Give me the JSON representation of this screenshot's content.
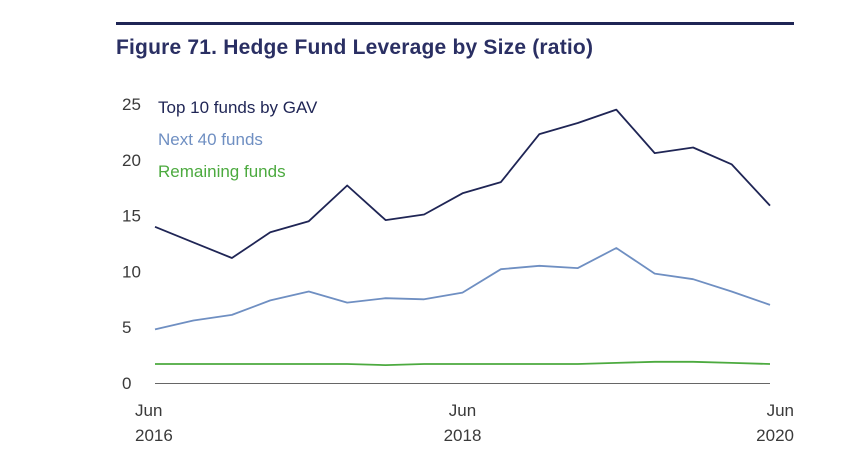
{
  "title": "Figure 71. Hedge Fund Leverage by Size (ratio)",
  "chart_data": {
    "type": "line",
    "title": "Figure 71. Hedge Fund Leverage by Size (ratio)",
    "xlabel": "",
    "ylabel": "",
    "ylim": [
      0,
      25
    ],
    "yticks": [
      "0",
      "5",
      "10",
      "15",
      "20",
      "25"
    ],
    "xticks": [
      {
        "label": [
          "Jun",
          "2016"
        ],
        "index": 0
      },
      {
        "label": [
          "Jun",
          "2018"
        ],
        "index": 8
      },
      {
        "label": [
          "Jun",
          "2020"
        ],
        "index": 16
      }
    ],
    "grid": false,
    "legend_position": "top-left",
    "x": [
      "Jun 2016",
      "Sep 2016",
      "Dec 2016",
      "Mar 2017",
      "Jun 2017",
      "Sep 2017",
      "Dec 2017",
      "Mar 2018",
      "Jun 2018",
      "Sep 2018",
      "Dec 2018",
      "Mar 2019",
      "Jun 2019",
      "Sep 2019",
      "Dec 2019",
      "Mar 2020",
      "Jun 2020"
    ],
    "series": [
      {
        "name": "Top 10 funds by GAV",
        "color": "#1f2555",
        "values": [
          14.0,
          12.6,
          11.2,
          13.5,
          14.5,
          17.7,
          14.6,
          15.1,
          17.0,
          18.0,
          22.3,
          23.3,
          24.5,
          20.6,
          21.1,
          19.6,
          15.9
        ]
      },
      {
        "name": "Next 40 funds",
        "color": "#6f8fc2",
        "values": [
          4.8,
          5.6,
          6.1,
          7.4,
          8.2,
          7.2,
          7.6,
          7.5,
          8.1,
          10.2,
          10.5,
          10.3,
          12.1,
          9.8,
          9.3,
          8.2,
          7.0
        ]
      },
      {
        "name": "Remaining funds",
        "color": "#4caa3f",
        "values": [
          1.7,
          1.7,
          1.7,
          1.7,
          1.7,
          1.7,
          1.6,
          1.7,
          1.7,
          1.7,
          1.7,
          1.7,
          1.8,
          1.9,
          1.9,
          1.8,
          1.7
        ]
      }
    ]
  }
}
